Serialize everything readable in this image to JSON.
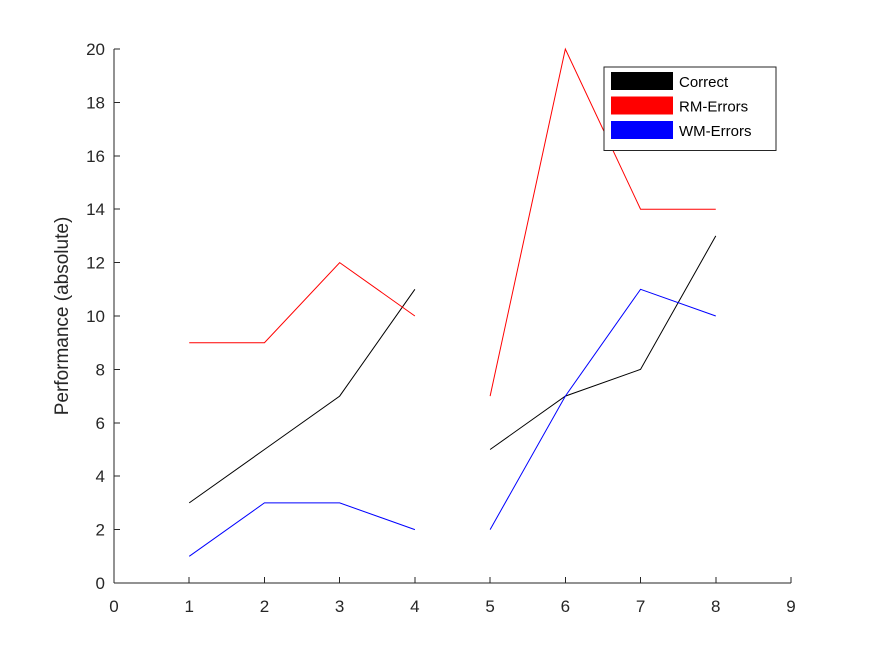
{
  "chart_data": {
    "type": "line",
    "title": "",
    "xlabel": "",
    "ylabel": "Performance (absolute)",
    "xlim": [
      0,
      9
    ],
    "ylim": [
      0,
      20
    ],
    "xticks": [
      0,
      1,
      2,
      3,
      4,
      5,
      6,
      7,
      8,
      9
    ],
    "yticks": [
      0,
      2,
      4,
      6,
      8,
      10,
      12,
      14,
      16,
      18,
      20
    ],
    "grid": false,
    "legend_position": "top-right",
    "series": [
      {
        "name": "Correct",
        "color": "#000000",
        "segments": [
          {
            "x": [
              1,
              2,
              3,
              4
            ],
            "y": [
              3,
              5,
              7,
              11
            ]
          },
          {
            "x": [
              5,
              6,
              7,
              8
            ],
            "y": [
              5,
              7,
              8,
              13
            ]
          }
        ]
      },
      {
        "name": "RM-Errors",
        "color": "#ff0000",
        "segments": [
          {
            "x": [
              1,
              2,
              3,
              4
            ],
            "y": [
              9,
              9,
              12,
              10
            ]
          },
          {
            "x": [
              5,
              6,
              7,
              8
            ],
            "y": [
              7,
              20,
              14,
              14
            ]
          }
        ]
      },
      {
        "name": "WM-Errors",
        "color": "#0000ff",
        "segments": [
          {
            "x": [
              1,
              2,
              3,
              4
            ],
            "y": [
              1,
              3,
              3,
              2
            ]
          },
          {
            "x": [
              5,
              6,
              7,
              8
            ],
            "y": [
              2,
              7,
              11,
              10
            ]
          }
        ]
      }
    ]
  }
}
